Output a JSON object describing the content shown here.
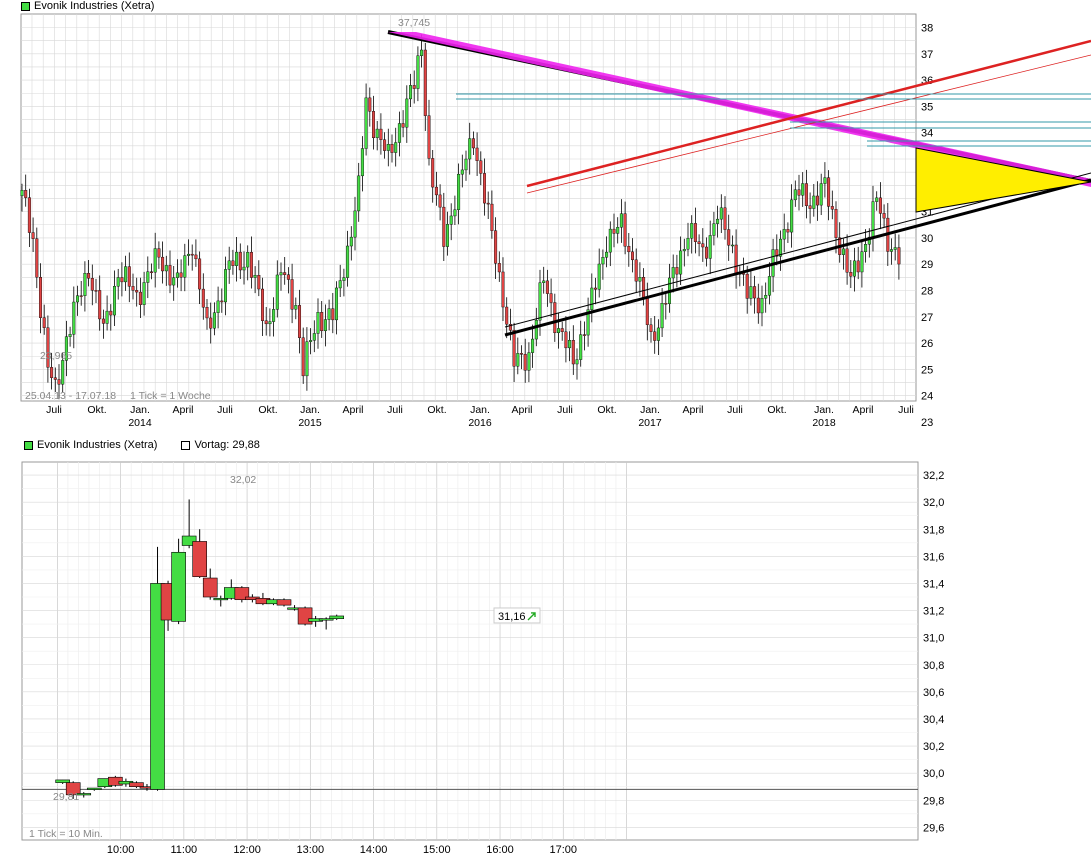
{
  "colors": {
    "up": "#44dd44",
    "down": "#e04444",
    "grid": "#d8d8d8",
    "line_black": "#000000",
    "line_red": "#dd2222",
    "line_magenta": "#ee22ee",
    "line_teal": "#3399aa",
    "fill_yellow": "#ffee00"
  },
  "chart_data": [
    {
      "type": "candlestick",
      "title": "Evonik Industries (Xetra)",
      "legend_icon": "green-square",
      "period_note": "25.04.13 - 17.07.18",
      "tick_note": "1 Tick = 1 Woche",
      "y_ticks": [
        "38",
        "37",
        "36",
        "35",
        "34",
        "33",
        "32",
        "31",
        "30",
        "29",
        "28",
        "27",
        "26",
        "25",
        "24",
        "23"
      ],
      "x_ticks": [
        "Juli",
        "Okt.",
        "Jan.",
        "April",
        "Juli",
        "Okt.",
        "Jan.",
        "April",
        "Juli",
        "Okt.",
        "Jan.",
        "April",
        "Juli",
        "Okt.",
        "Jan.",
        "April",
        "Juli",
        "Okt.",
        "Jan.",
        "April",
        "Juli"
      ],
      "year_labels": [
        "2014",
        "2015",
        "2016",
        "2017",
        "2018"
      ],
      "annotations": {
        "high": "37,745",
        "low": "23,965"
      },
      "anchors": [
        {
          "x": 0,
          "y": 31.6
        },
        {
          "x": 3,
          "y": 29.9
        },
        {
          "x": 7,
          "y": 25.0
        },
        {
          "x": 9,
          "y": 24.2
        },
        {
          "x": 12,
          "y": 26.2
        },
        {
          "x": 18,
          "y": 28.9
        },
        {
          "x": 22,
          "y": 26.4
        },
        {
          "x": 26,
          "y": 28.7
        },
        {
          "x": 31,
          "y": 27.8
        },
        {
          "x": 37,
          "y": 29.3
        },
        {
          "x": 42,
          "y": 28.2
        },
        {
          "x": 46,
          "y": 29.9
        },
        {
          "x": 50,
          "y": 26.4
        },
        {
          "x": 56,
          "y": 28.9
        },
        {
          "x": 61,
          "y": 29.3
        },
        {
          "x": 66,
          "y": 26.6
        },
        {
          "x": 70,
          "y": 28.7
        },
        {
          "x": 74,
          "y": 27.5
        },
        {
          "x": 76,
          "y": 25.0
        },
        {
          "x": 80,
          "y": 27.0
        },
        {
          "x": 84,
          "y": 27.0
        },
        {
          "x": 88,
          "y": 29.6
        },
        {
          "x": 91,
          "y": 31.8
        },
        {
          "x": 93,
          "y": 35.2
        },
        {
          "x": 96,
          "y": 34.0
        },
        {
          "x": 99,
          "y": 33.0
        },
        {
          "x": 102,
          "y": 34.3
        },
        {
          "x": 106,
          "y": 35.8
        },
        {
          "x": 108,
          "y": 37.4
        },
        {
          "x": 110,
          "y": 32.8
        },
        {
          "x": 114,
          "y": 30.0
        },
        {
          "x": 118,
          "y": 32.0
        },
        {
          "x": 122,
          "y": 33.9
        },
        {
          "x": 126,
          "y": 30.8
        },
        {
          "x": 130,
          "y": 27.8
        },
        {
          "x": 133,
          "y": 25.2
        },
        {
          "x": 137,
          "y": 25.6
        },
        {
          "x": 141,
          "y": 28.4
        },
        {
          "x": 145,
          "y": 26.5
        },
        {
          "x": 149,
          "y": 25.3
        },
        {
          "x": 154,
          "y": 27.6
        },
        {
          "x": 158,
          "y": 30.0
        },
        {
          "x": 162,
          "y": 30.4
        },
        {
          "x": 166,
          "y": 28.8
        },
        {
          "x": 170,
          "y": 26.1
        },
        {
          "x": 175,
          "y": 28.1
        },
        {
          "x": 180,
          "y": 30.3
        },
        {
          "x": 184,
          "y": 29.4
        },
        {
          "x": 188,
          "y": 30.9
        },
        {
          "x": 192,
          "y": 29.6
        },
        {
          "x": 196,
          "y": 27.8
        },
        {
          "x": 200,
          "y": 27.6
        },
        {
          "x": 205,
          "y": 29.9
        },
        {
          "x": 209,
          "y": 31.7
        },
        {
          "x": 213,
          "y": 31.4
        },
        {
          "x": 217,
          "y": 31.9
        },
        {
          "x": 220,
          "y": 30.3
        },
        {
          "x": 224,
          "y": 28.3
        },
        {
          "x": 228,
          "y": 29.9
        },
        {
          "x": 231,
          "y": 31.4
        },
        {
          "x": 234,
          "y": 30.0
        },
        {
          "x": 237,
          "y": 29.2
        }
      ]
    },
    {
      "type": "candlestick",
      "title": "Evonik Industries (Xetra)",
      "legend_icon": "green-square",
      "vortag_label": "Vortag: 29,88",
      "tick_note": "1 Tick = 10 Min.",
      "y_ticks": [
        "32,2",
        "32,0",
        "31,8",
        "31,6",
        "31,4",
        "31,2",
        "31,0",
        "30,8",
        "30,6",
        "30,4",
        "30,2",
        "30,0",
        "29,8",
        "29,6"
      ],
      "x_ticks": [
        "10:00",
        "11:00",
        "12:00",
        "13:00",
        "14:00",
        "15:00",
        "16:00",
        "17:00"
      ],
      "annotations": {
        "high": "32,02",
        "low": "29,81",
        "last": "31,16"
      },
      "candles": [
        {
          "t": "09:00",
          "o": 29.93,
          "h": 29.95,
          "l": 29.92,
          "c": 29.95
        },
        {
          "t": "09:10",
          "o": 29.93,
          "h": 29.94,
          "l": 29.81,
          "c": 29.84
        },
        {
          "t": "09:20",
          "o": 29.84,
          "h": 29.86,
          "l": 29.82,
          "c": 29.85
        },
        {
          "t": "09:30",
          "o": 29.88,
          "h": 29.89,
          "l": 29.87,
          "c": 29.89
        },
        {
          "t": "09:40",
          "o": 29.9,
          "h": 29.96,
          "l": 29.89,
          "c": 29.96
        },
        {
          "t": "09:50",
          "o": 29.97,
          "h": 29.98,
          "l": 29.9,
          "c": 29.91
        },
        {
          "t": "10:00",
          "o": 29.92,
          "h": 29.96,
          "l": 29.9,
          "c": 29.94
        },
        {
          "t": "10:10",
          "o": 29.93,
          "h": 29.94,
          "l": 29.89,
          "c": 29.9
        },
        {
          "t": "10:20",
          "o": 29.9,
          "h": 29.92,
          "l": 29.87,
          "c": 29.89
        },
        {
          "t": "10:30",
          "o": 29.88,
          "h": 31.67,
          "l": 29.87,
          "c": 31.4
        },
        {
          "t": "10:40",
          "o": 31.4,
          "h": 31.42,
          "l": 31.05,
          "c": 31.13
        },
        {
          "t": "10:50",
          "o": 31.12,
          "h": 31.73,
          "l": 31.1,
          "c": 31.63
        },
        {
          "t": "11:00",
          "o": 31.68,
          "h": 32.02,
          "l": 31.66,
          "c": 31.75
        },
        {
          "t": "11:10",
          "o": 31.71,
          "h": 31.8,
          "l": 31.44,
          "c": 31.45
        },
        {
          "t": "11:20",
          "o": 31.44,
          "h": 31.51,
          "l": 31.28,
          "c": 31.3
        },
        {
          "t": "11:30",
          "o": 31.29,
          "h": 31.31,
          "l": 31.23,
          "c": 31.29
        },
        {
          "t": "11:40",
          "o": 31.29,
          "h": 31.43,
          "l": 31.28,
          "c": 31.37
        },
        {
          "t": "11:50",
          "o": 31.37,
          "h": 31.38,
          "l": 31.26,
          "c": 31.28
        },
        {
          "t": "12:00",
          "o": 31.3,
          "h": 31.32,
          "l": 31.26,
          "c": 31.28
        },
        {
          "t": "12:10",
          "o": 31.29,
          "h": 31.33,
          "l": 31.24,
          "c": 31.25
        },
        {
          "t": "12:20",
          "o": 31.25,
          "h": 31.29,
          "l": 31.24,
          "c": 31.28
        },
        {
          "t": "12:30",
          "o": 31.28,
          "h": 31.29,
          "l": 31.23,
          "c": 31.24
        },
        {
          "t": "12:40",
          "o": 31.22,
          "h": 31.24,
          "l": 31.2,
          "c": 31.22
        },
        {
          "t": "12:50",
          "o": 31.22,
          "h": 31.23,
          "l": 31.09,
          "c": 31.1
        },
        {
          "t": "13:00",
          "o": 31.12,
          "h": 31.16,
          "l": 31.08,
          "c": 31.14
        },
        {
          "t": "13:10",
          "o": 31.13,
          "h": 31.15,
          "l": 31.06,
          "c": 31.14
        },
        {
          "t": "13:20",
          "o": 31.14,
          "h": 31.17,
          "l": 31.13,
          "c": 31.16
        }
      ]
    }
  ]
}
